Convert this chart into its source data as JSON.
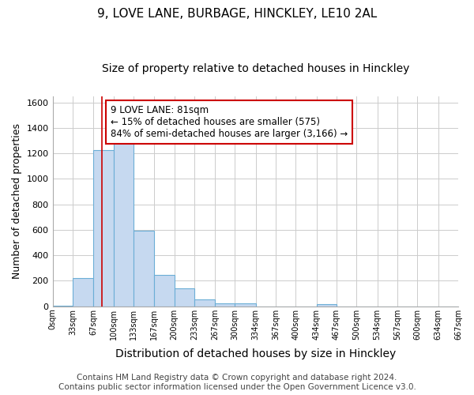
{
  "title1": "9, LOVE LANE, BURBAGE, HINCKLEY, LE10 2AL",
  "title2": "Size of property relative to detached houses in Hinckley",
  "xlabel": "Distribution of detached houses by size in Hinckley",
  "ylabel": "Number of detached properties",
  "bar_values": [
    5,
    220,
    1225,
    1295,
    595,
    245,
    140,
    55,
    25,
    25,
    0,
    0,
    0,
    15,
    0,
    0,
    0,
    0,
    0,
    0
  ],
  "bin_edges": [
    0,
    33,
    67,
    100,
    133,
    167,
    200,
    233,
    267,
    300,
    334,
    367,
    400,
    434,
    467,
    500,
    534,
    567,
    600,
    634,
    667
  ],
  "tick_labels": [
    "0sqm",
    "33sqm",
    "67sqm",
    "100sqm",
    "133sqm",
    "167sqm",
    "200sqm",
    "233sqm",
    "267sqm",
    "300sqm",
    "334sqm",
    "367sqm",
    "400sqm",
    "434sqm",
    "467sqm",
    "500sqm",
    "534sqm",
    "567sqm",
    "600sqm",
    "634sqm",
    "667sqm"
  ],
  "bar_color": "#c6d9f0",
  "bar_edge_color": "#6baed6",
  "vline_x": 81,
  "vline_color": "#cc0000",
  "ylim": [
    0,
    1650
  ],
  "yticks": [
    0,
    200,
    400,
    600,
    800,
    1000,
    1200,
    1400,
    1600
  ],
  "annotation_text": "9 LOVE LANE: 81sqm\n← 15% of detached houses are smaller (575)\n84% of semi-detached houses are larger (3,166) →",
  "annotation_box_color": "#cc0000",
  "footer_text": "Contains HM Land Registry data © Crown copyright and database right 2024.\nContains public sector information licensed under the Open Government Licence v3.0.",
  "background_color": "#ffffff",
  "plot_background": "#ffffff",
  "grid_color": "#cccccc",
  "title1_fontsize": 11,
  "title2_fontsize": 10,
  "xlabel_fontsize": 10,
  "ylabel_fontsize": 9,
  "footer_fontsize": 7.5,
  "ann_fontsize": 8.5
}
